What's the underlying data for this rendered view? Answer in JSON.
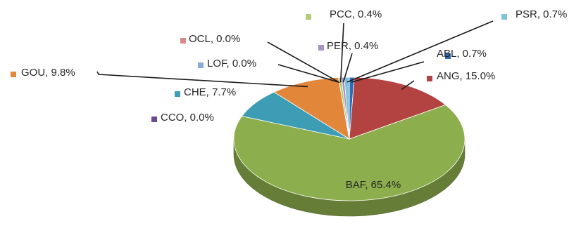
{
  "chart_data": {
    "type": "pie",
    "variant": "3d",
    "title": "",
    "slices": [
      {
        "label": "ABL",
        "value": 0.7,
        "text": "ABL, 0.7%",
        "color": "#2e6bb8"
      },
      {
        "label": "ANG",
        "value": 15.0,
        "text": "ANG, 15.0%",
        "color": "#b24341"
      },
      {
        "label": "BAF",
        "value": 65.4,
        "text": "BAF, 65.4%",
        "color": "#8cae4c"
      },
      {
        "label": "CCO",
        "value": 0.0,
        "text": "CCO, 0.0%",
        "color": "#6b4a93"
      },
      {
        "label": "CHE",
        "value": 7.7,
        "text": "CHE, 7.7%",
        "color": "#3c9db5"
      },
      {
        "label": "GOU",
        "value": 9.8,
        "text": "GOU, 9.8%",
        "color": "#e2863a"
      },
      {
        "label": "LOF",
        "value": 0.0,
        "text": "LOF, 0.0%",
        "color": "#8aaad8"
      },
      {
        "label": "OCL",
        "value": 0.0,
        "text": "OCL, 0.0%",
        "color": "#d98a88"
      },
      {
        "label": "PCC",
        "value": 0.4,
        "text": "PCC, 0.4%",
        "color": "#b1cc78"
      },
      {
        "label": "PER",
        "value": 0.4,
        "text": "PER, 0.4%",
        "color": "#a791c7"
      },
      {
        "label": "PSR",
        "value": 0.7,
        "text": "PSR, 0.7%",
        "color": "#7ec3dc"
      }
    ]
  }
}
